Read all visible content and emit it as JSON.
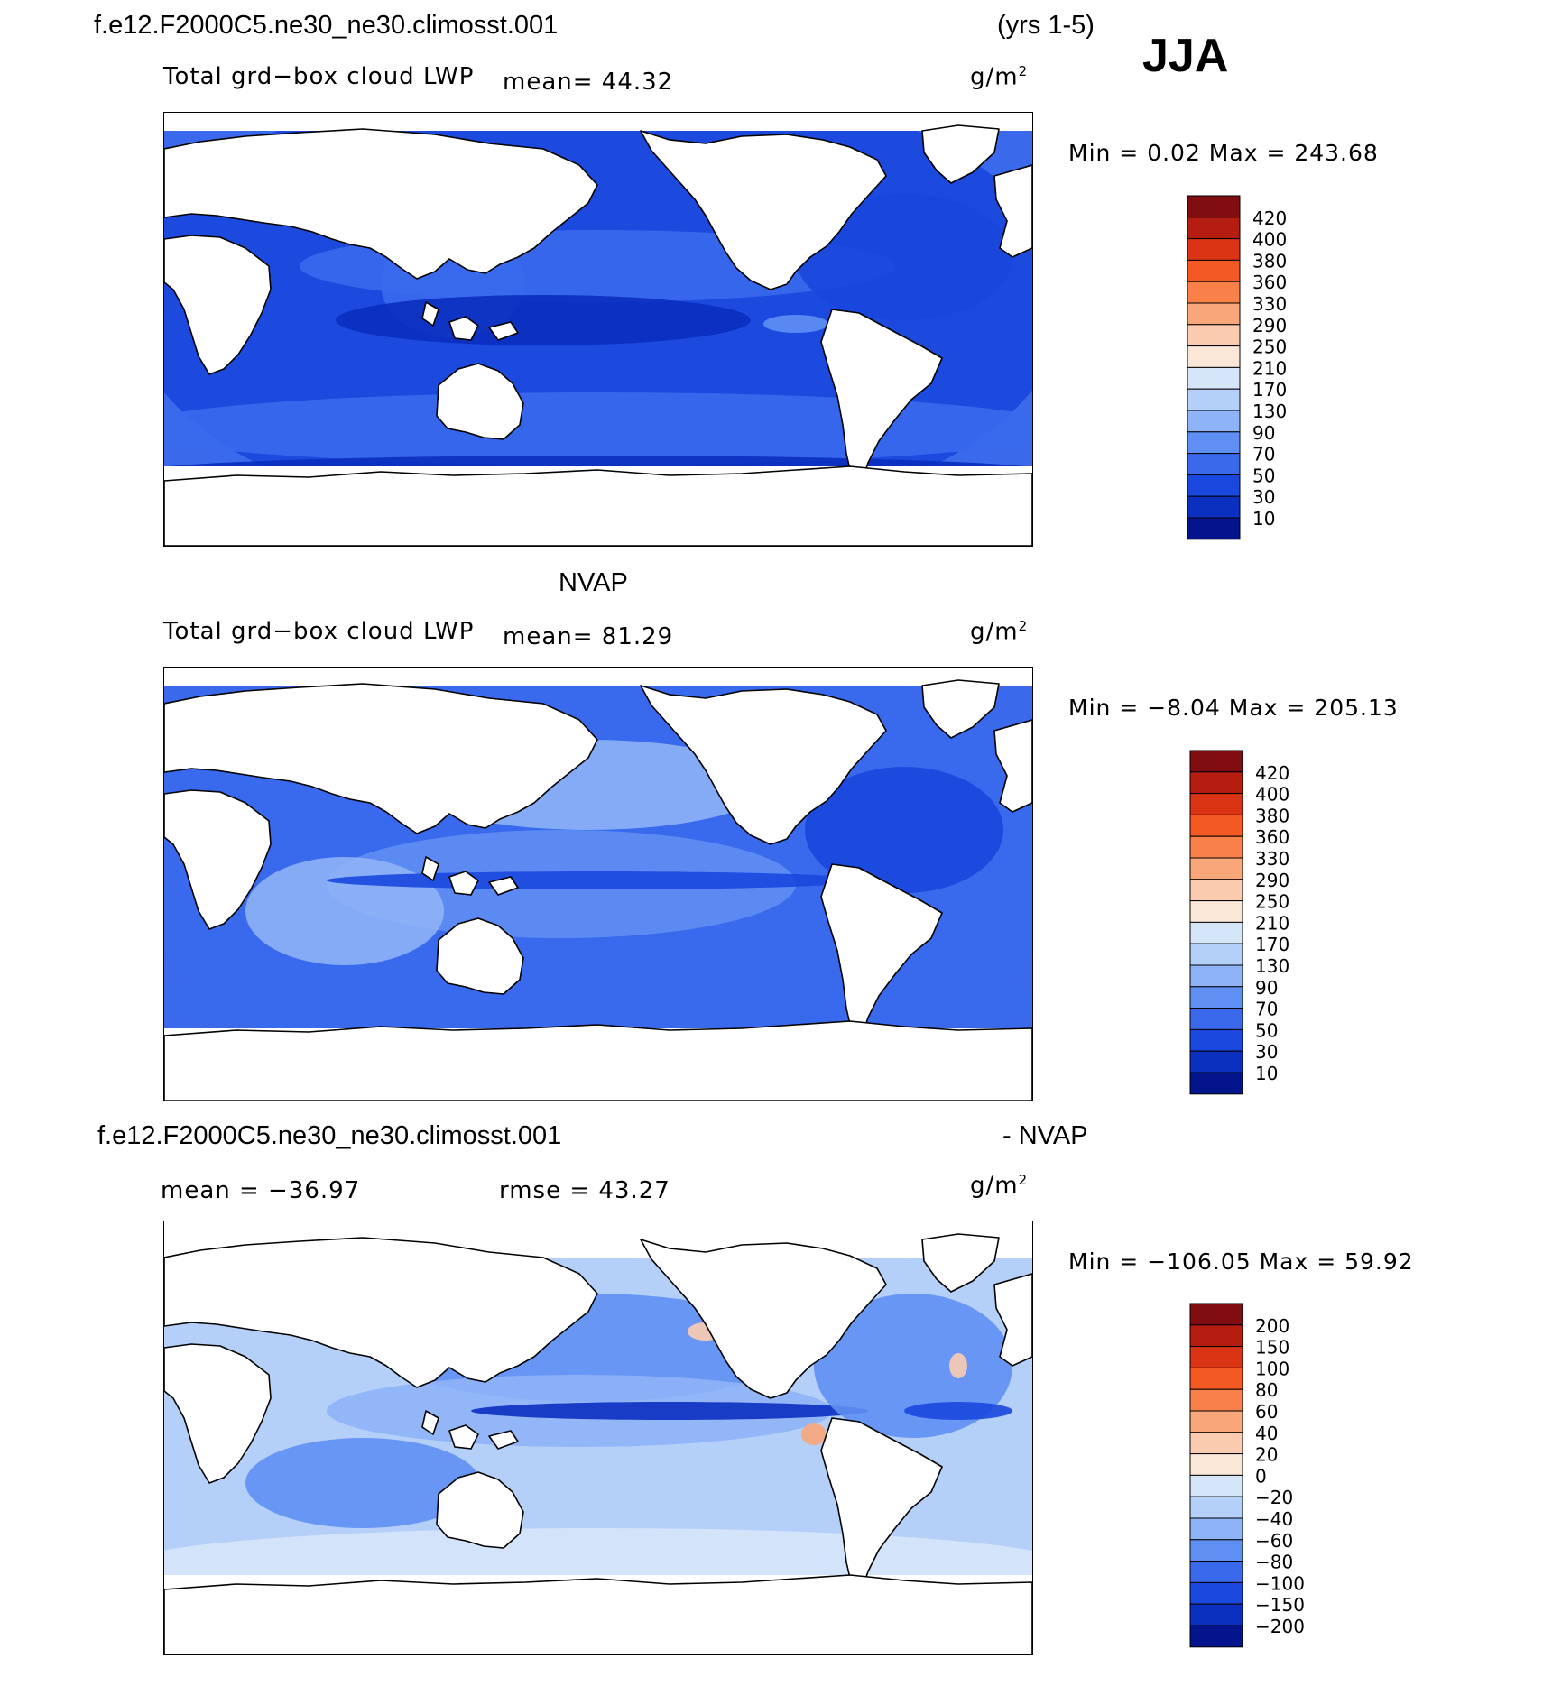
{
  "header": {
    "case": "f.e12.F2000C5.ne30_ne30.climosst.001",
    "years": "(yrs 1-5)",
    "season": "JJA"
  },
  "panels": [
    {
      "id": "model",
      "section_title": "",
      "variable": "Total grd−box cloud LWP",
      "stat_text": "mean=   44.32",
      "units_base": "g/m",
      "units_exp": "2",
      "minmax_text": "Min  =    0.02  Max  =  243.68",
      "palette": "lwp"
    },
    {
      "id": "obs",
      "section_title": "NVAP",
      "variable": "Total grd−box cloud LWP",
      "stat_text": "mean=   81.29",
      "units_base": "g/m",
      "units_exp": "2",
      "minmax_text": "Min  =   −8.04  Max  =  205.13",
      "palette": "lwp"
    },
    {
      "id": "diff",
      "section_title": "f.e12.F2000C5.ne30_ne30.climosst.001",
      "section_title_right": "- NVAP",
      "mean_text": "mean  =  −36.97",
      "rmse_text": "rmse  =   43.27",
      "units_base": "g/m",
      "units_exp": "2",
      "minmax_text": "Min  =  −106.05  Max  =    59.92",
      "palette": "diff"
    }
  ],
  "chart_data": [
    {
      "type": "heatmap",
      "title": "Total grd−box cloud LWP",
      "units": "g/m2",
      "mean": 44.32,
      "min": 0.02,
      "max": 243.68,
      "colorbar_levels": [
        "420",
        "400",
        "380",
        "360",
        "330",
        "290",
        "250",
        "210",
        "170",
        "130",
        "90",
        "70",
        "50",
        "30",
        "10"
      ],
      "colorbar_colors": [
        "#800d0f",
        "#b41d10",
        "#da3414",
        "#f35a23",
        "#f98048",
        "#f9a67a",
        "#fbcbb0",
        "#fbe7d8",
        "#d6e6f9",
        "#b4cff8",
        "#8fb3f7",
        "#5f8ff3",
        "#3a69ec",
        "#1a47de",
        "#0b2fbf",
        "#04148d"
      ]
    },
    {
      "type": "heatmap",
      "title": "NVAP",
      "units": "g/m2",
      "mean": 81.29,
      "min": -8.04,
      "max": 205.13,
      "colorbar_levels": [
        "420",
        "400",
        "380",
        "360",
        "330",
        "290",
        "250",
        "210",
        "170",
        "130",
        "90",
        "70",
        "50",
        "30",
        "10"
      ],
      "colorbar_colors": [
        "#800d0f",
        "#b41d10",
        "#da3414",
        "#f35a23",
        "#f98048",
        "#f9a67a",
        "#fbcbb0",
        "#fbe7d8",
        "#d6e6f9",
        "#b4cff8",
        "#8fb3f7",
        "#5f8ff3",
        "#3a69ec",
        "#1a47de",
        "#0b2fbf",
        "#04148d"
      ]
    },
    {
      "type": "heatmap",
      "title": "f.e12.F2000C5.ne30_ne30.climosst.001 - NVAP",
      "units": "g/m2",
      "mean": -36.97,
      "rmse": 43.27,
      "min": -106.05,
      "max": 59.92,
      "colorbar_levels": [
        "200",
        "150",
        "100",
        "80",
        "60",
        "40",
        "20",
        "0",
        "−20",
        "−40",
        "−60",
        "−80",
        "−100",
        "−150",
        "−200"
      ],
      "colorbar_colors": [
        "#800d0f",
        "#b41d10",
        "#da3414",
        "#f35a23",
        "#f98048",
        "#f9a67a",
        "#fbcbb0",
        "#fbe7d8",
        "#d6e6f9",
        "#b4cff8",
        "#8fb3f7",
        "#5f8ff3",
        "#3a69ec",
        "#1a47de",
        "#0b2fbf",
        "#04148d"
      ]
    }
  ]
}
